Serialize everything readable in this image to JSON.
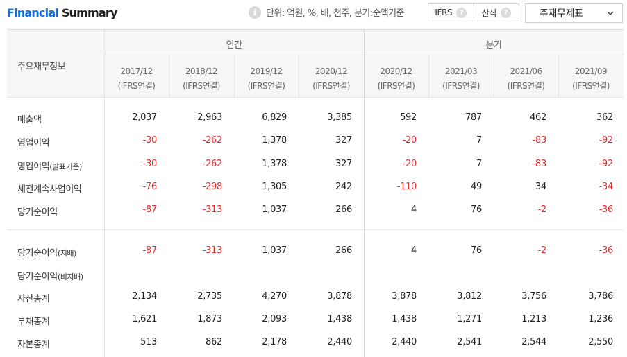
{
  "header": {
    "title_part1": "Financial",
    "title_part2": " Summary",
    "info_icon": "info-icon",
    "info_text": "단위: 억원, %, 배, 천주, 분기:순액기준",
    "toggle": [
      {
        "label": "IFRS",
        "help": "?"
      },
      {
        "label": "산식",
        "help": "?"
      }
    ],
    "select_value": "주재무제표"
  },
  "table": {
    "corner_label": "주요재무정보",
    "groups": {
      "annual": "연간",
      "quarter": "분기"
    },
    "columns": [
      {
        "period": "2017/12",
        "basis": "(IFRS연결)"
      },
      {
        "period": "2018/12",
        "basis": "(IFRS연결)"
      },
      {
        "period": "2019/12",
        "basis": "(IFRS연결)"
      },
      {
        "period": "2020/12",
        "basis": "(IFRS연결)"
      },
      {
        "period": "2020/12",
        "basis": "(IFRS연결)"
      },
      {
        "period": "2021/03",
        "basis": "(IFRS연결)"
      },
      {
        "period": "2021/06",
        "basis": "(IFRS연결)"
      },
      {
        "period": "2021/09",
        "basis": "(IFRS연결)"
      }
    ],
    "rows": [
      {
        "label": "매출액",
        "suffix": "",
        "values": [
          "2,037",
          "2,963",
          "6,829",
          "3,385",
          "592",
          "787",
          "462",
          "362"
        ]
      },
      {
        "label": "영업이익",
        "suffix": "",
        "values": [
          "-30",
          "-262",
          "1,378",
          "327",
          "-20",
          "7",
          "-83",
          "-92"
        ]
      },
      {
        "label": "영업이익",
        "suffix": "(발표기준)",
        "values": [
          "-30",
          "-262",
          "1,378",
          "327",
          "-20",
          "7",
          "-83",
          "-92"
        ]
      },
      {
        "label": "세전계속사업이익",
        "suffix": "",
        "values": [
          "-76",
          "-298",
          "1,305",
          "242",
          "-110",
          "49",
          "34",
          "-34"
        ]
      },
      {
        "label": "당기순이익",
        "suffix": "",
        "values": [
          "-87",
          "-313",
          "1,037",
          "266",
          "4",
          "76",
          "-2",
          "-36"
        ]
      },
      {
        "label": "당기순이익",
        "suffix": "(지배)",
        "values": [
          "-87",
          "-313",
          "1,037",
          "266",
          "4",
          "76",
          "-2",
          "-36"
        ]
      },
      {
        "label": "당기순이익",
        "suffix": "(비지배)",
        "values": [
          "",
          "",
          "",
          "",
          "",
          "",
          "",
          ""
        ]
      },
      {
        "label": "자산총계",
        "suffix": "",
        "values": [
          "2,134",
          "2,735",
          "4,270",
          "3,878",
          "3,878",
          "3,812",
          "3,756",
          "3,786"
        ]
      },
      {
        "label": "부채총계",
        "suffix": "",
        "values": [
          "1,621",
          "1,873",
          "2,093",
          "1,438",
          "1,438",
          "1,271",
          "1,213",
          "1,236"
        ]
      },
      {
        "label": "자본총계",
        "suffix": "",
        "values": [
          "513",
          "862",
          "2,178",
          "2,440",
          "2,440",
          "2,541",
          "2,544",
          "2,550"
        ]
      }
    ],
    "negative_color": "#e52a2a",
    "accent_color": "#1a6fd6"
  }
}
